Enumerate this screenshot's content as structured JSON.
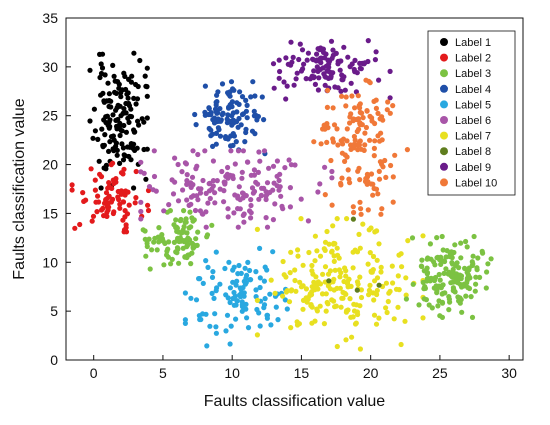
{
  "chart_data": {
    "type": "scatter",
    "xlabel": "Faults classification value",
    "ylabel": "Faults classification value",
    "xlim": [
      -2,
      31
    ],
    "ylim": [
      0,
      35
    ],
    "xticks": [
      0,
      5,
      10,
      15,
      20,
      25,
      30
    ],
    "yticks": [
      0,
      5,
      10,
      15,
      20,
      25,
      30,
      35
    ],
    "grid": false,
    "legend_position": "top-right",
    "series": [
      {
        "name": "Label 1",
        "color": "#000000",
        "cluster": {
          "cx": 1.8,
          "cy": 24.5,
          "sx": 0.9,
          "sy": 3.0,
          "n": 150,
          "seed": 11
        }
      },
      {
        "name": "Label 2",
        "color": "#e31a1c",
        "cluster": {
          "cx": 1.2,
          "cy": 16.8,
          "sx": 1.2,
          "sy": 1.6,
          "n": 80,
          "seed": 22
        }
      },
      {
        "name": "Label 3",
        "color": "#7cc242",
        "cluster": {
          "cx": 6.0,
          "cy": 12.3,
          "sx": 1.1,
          "sy": 1.3,
          "n": 95,
          "seed": 33
        }
      },
      {
        "name": "Label 4",
        "color": "#1f4fa8",
        "cluster": {
          "cx": 9.6,
          "cy": 24.8,
          "sx": 1.2,
          "sy": 1.6,
          "n": 110,
          "seed": 44
        }
      },
      {
        "name": "Label 5",
        "color": "#29a8e0",
        "cluster": {
          "cx": 10.3,
          "cy": 6.5,
          "sx": 1.6,
          "sy": 2.2,
          "n": 110,
          "seed": 55
        }
      },
      {
        "name": "Label 6",
        "color": "#a855a8",
        "cluster": {
          "cx": 10.3,
          "cy": 17.5,
          "sx": 3.0,
          "sy": 1.7,
          "n": 165,
          "seed": 66
        }
      },
      {
        "name": "Label 7",
        "color": "#e8e020",
        "cluster": {
          "cx": 17.8,
          "cy": 7.8,
          "sx": 2.6,
          "sy": 2.9,
          "n": 210,
          "seed": 77
        }
      },
      {
        "name": "Label 8",
        "color": "#5f7d1e",
        "cluster": {
          "cx": 19.5,
          "cy": 9.5,
          "sx": 2.0,
          "sy": 2.5,
          "n": 4,
          "seed": 88
        }
      },
      {
        "name": "Label 9",
        "color": "#6a1b8a",
        "cluster": {
          "cx": 16.8,
          "cy": 29.7,
          "sx": 2.0,
          "sy": 1.3,
          "n": 115,
          "seed": 99
        }
      },
      {
        "name": "Label 10",
        "color": "#f07838",
        "cluster": {
          "cx": 19.2,
          "cy": 22.5,
          "sx": 1.5,
          "sy": 3.3,
          "n": 140,
          "seed": 111
        }
      },
      {
        "name": "Label 3",
        "color": "#7cc242",
        "legend": false,
        "cluster": {
          "cx": 25.8,
          "cy": 8.5,
          "sx": 1.4,
          "sy": 1.8,
          "n": 160,
          "seed": 123
        }
      }
    ]
  }
}
